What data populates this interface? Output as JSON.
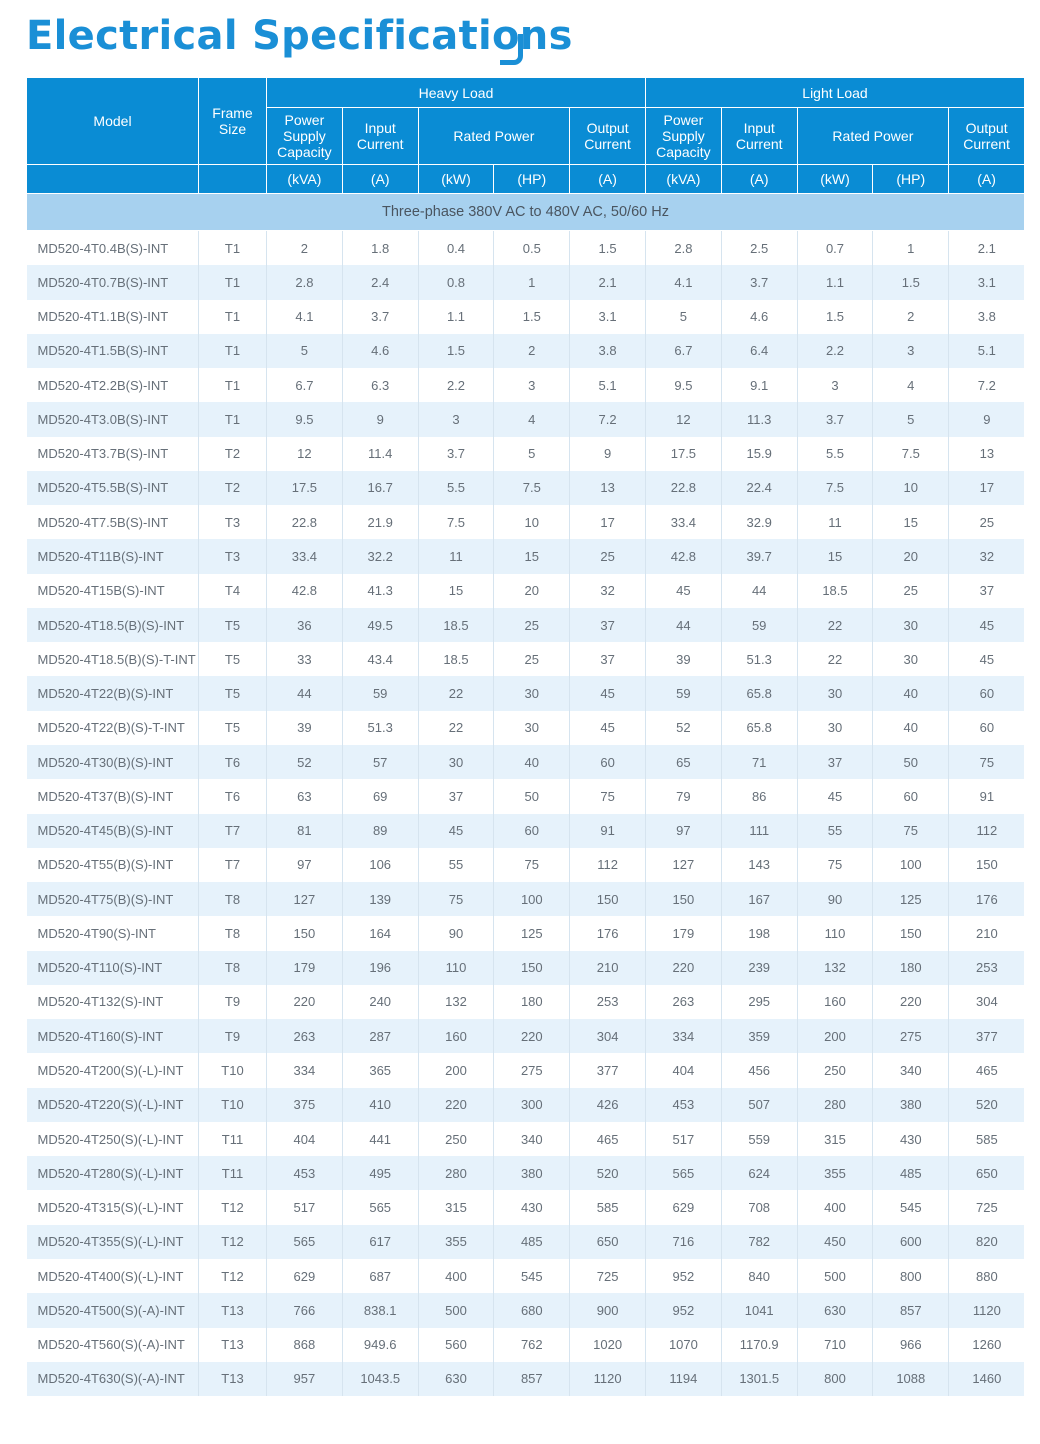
{
  "title": "Electrical Specifications",
  "headers": {
    "model": "Model",
    "frame_size": "Frame Size",
    "heavy_load": "Heavy Load",
    "light_load": "Light Load",
    "power_supply_capacity": "Power Supply Capacity",
    "input_current": "Input Current",
    "rated_power": "Rated Power",
    "output_current": "Output Current",
    "units": [
      "(kVA)",
      "(A)",
      "(kW)",
      "(HP)",
      "(A)",
      "(kVA)",
      "(A)",
      "(kW)",
      "(HP)",
      "(A)"
    ]
  },
  "section_label": "Three-phase 380V AC to 480V AC, 50/60 Hz",
  "rows": [
    [
      "MD520-4T0.4B(S)-INT",
      "T1",
      "2",
      "1.8",
      "0.4",
      "0.5",
      "1.5",
      "2.8",
      "2.5",
      "0.7",
      "1",
      "2.1"
    ],
    [
      "MD520-4T0.7B(S)-INT",
      "T1",
      "2.8",
      "2.4",
      "0.8",
      "1",
      "2.1",
      "4.1",
      "3.7",
      "1.1",
      "1.5",
      "3.1"
    ],
    [
      "MD520-4T1.1B(S)-INT",
      "T1",
      "4.1",
      "3.7",
      "1.1",
      "1.5",
      "3.1",
      "5",
      "4.6",
      "1.5",
      "2",
      "3.8"
    ],
    [
      "MD520-4T1.5B(S)-INT",
      "T1",
      "5",
      "4.6",
      "1.5",
      "2",
      "3.8",
      "6.7",
      "6.4",
      "2.2",
      "3",
      "5.1"
    ],
    [
      "MD520-4T2.2B(S)-INT",
      "T1",
      "6.7",
      "6.3",
      "2.2",
      "3",
      "5.1",
      "9.5",
      "9.1",
      "3",
      "4",
      "7.2"
    ],
    [
      "MD520-4T3.0B(S)-INT",
      "T1",
      "9.5",
      "9",
      "3",
      "4",
      "7.2",
      "12",
      "11.3",
      "3.7",
      "5",
      "9"
    ],
    [
      "MD520-4T3.7B(S)-INT",
      "T2",
      "12",
      "11.4",
      "3.7",
      "5",
      "9",
      "17.5",
      "15.9",
      "5.5",
      "7.5",
      "13"
    ],
    [
      "MD520-4T5.5B(S)-INT",
      "T2",
      "17.5",
      "16.7",
      "5.5",
      "7.5",
      "13",
      "22.8",
      "22.4",
      "7.5",
      "10",
      "17"
    ],
    [
      "MD520-4T7.5B(S)-INT",
      "T3",
      "22.8",
      "21.9",
      "7.5",
      "10",
      "17",
      "33.4",
      "32.9",
      "11",
      "15",
      "25"
    ],
    [
      "MD520-4T11B(S)-INT",
      "T3",
      "33.4",
      "32.2",
      "11",
      "15",
      "25",
      "42.8",
      "39.7",
      "15",
      "20",
      "32"
    ],
    [
      "MD520-4T15B(S)-INT",
      "T4",
      "42.8",
      "41.3",
      "15",
      "20",
      "32",
      "45",
      "44",
      "18.5",
      "25",
      "37"
    ],
    [
      "MD520-4T18.5(B)(S)-INT",
      "T5",
      "36",
      "49.5",
      "18.5",
      "25",
      "37",
      "44",
      "59",
      "22",
      "30",
      "45"
    ],
    [
      "MD520-4T18.5(B)(S)-T-INT",
      "T5",
      "33",
      "43.4",
      "18.5",
      "25",
      "37",
      "39",
      "51.3",
      "22",
      "30",
      "45"
    ],
    [
      "MD520-4T22(B)(S)-INT",
      "T5",
      "44",
      "59",
      "22",
      "30",
      "45",
      "59",
      "65.8",
      "30",
      "40",
      "60"
    ],
    [
      "MD520-4T22(B)(S)-T-INT",
      "T5",
      "39",
      "51.3",
      "22",
      "30",
      "45",
      "52",
      "65.8",
      "30",
      "40",
      "60"
    ],
    [
      "MD520-4T30(B)(S)-INT",
      "T6",
      "52",
      "57",
      "30",
      "40",
      "60",
      "65",
      "71",
      "37",
      "50",
      "75"
    ],
    [
      "MD520-4T37(B)(S)-INT",
      "T6",
      "63",
      "69",
      "37",
      "50",
      "75",
      "79",
      "86",
      "45",
      "60",
      "91"
    ],
    [
      "MD520-4T45(B)(S)-INT",
      "T7",
      "81",
      "89",
      "45",
      "60",
      "91",
      "97",
      "111",
      "55",
      "75",
      "112"
    ],
    [
      "MD520-4T55(B)(S)-INT",
      "T7",
      "97",
      "106",
      "55",
      "75",
      "112",
      "127",
      "143",
      "75",
      "100",
      "150"
    ],
    [
      "MD520-4T75(B)(S)-INT",
      "T8",
      "127",
      "139",
      "75",
      "100",
      "150",
      "150",
      "167",
      "90",
      "125",
      "176"
    ],
    [
      "MD520-4T90(S)-INT",
      "T8",
      "150",
      "164",
      "90",
      "125",
      "176",
      "179",
      "198",
      "110",
      "150",
      "210"
    ],
    [
      "MD520-4T110(S)-INT",
      "T8",
      "179",
      "196",
      "110",
      "150",
      "210",
      "220",
      "239",
      "132",
      "180",
      "253"
    ],
    [
      "MD520-4T132(S)-INT",
      "T9",
      "220",
      "240",
      "132",
      "180",
      "253",
      "263",
      "295",
      "160",
      "220",
      "304"
    ],
    [
      "MD520-4T160(S)-INT",
      "T9",
      "263",
      "287",
      "160",
      "220",
      "304",
      "334",
      "359",
      "200",
      "275",
      "377"
    ],
    [
      "MD520-4T200(S)(-L)-INT",
      "T10",
      "334",
      "365",
      "200",
      "275",
      "377",
      "404",
      "456",
      "250",
      "340",
      "465"
    ],
    [
      "MD520-4T220(S)(-L)-INT",
      "T10",
      "375",
      "410",
      "220",
      "300",
      "426",
      "453",
      "507",
      "280",
      "380",
      "520"
    ],
    [
      "MD520-4T250(S)(-L)-INT",
      "T11",
      "404",
      "441",
      "250",
      "340",
      "465",
      "517",
      "559",
      "315",
      "430",
      "585"
    ],
    [
      "MD520-4T280(S)(-L)-INT",
      "T11",
      "453",
      "495",
      "280",
      "380",
      "520",
      "565",
      "624",
      "355",
      "485",
      "650"
    ],
    [
      "MD520-4T315(S)(-L)-INT",
      "T12",
      "517",
      "565",
      "315",
      "430",
      "585",
      "629",
      "708",
      "400",
      "545",
      "725"
    ],
    [
      "MD520-4T355(S)(-L)-INT",
      "T12",
      "565",
      "617",
      "355",
      "485",
      "650",
      "716",
      "782",
      "450",
      "600",
      "820"
    ],
    [
      "MD520-4T400(S)(-L)-INT",
      "T12",
      "629",
      "687",
      "400",
      "545",
      "725",
      "952",
      "840",
      "500",
      "800",
      "880"
    ],
    [
      "MD520-4T500(S)(-A)-INT",
      "T13",
      "766",
      "838.1",
      "500",
      "680",
      "900",
      "952",
      "1041",
      "630",
      "857",
      "1120"
    ],
    [
      "MD520-4T560(S)(-A)-INT",
      "T13",
      "868",
      "949.6",
      "560",
      "762",
      "1020",
      "1070",
      "1170.9",
      "710",
      "966",
      "1260"
    ],
    [
      "MD520-4T630(S)(-A)-INT",
      "T13",
      "957",
      "1043.5",
      "630",
      "857",
      "1120",
      "1194",
      "1301.5",
      "800",
      "1088",
      "1460"
    ]
  ]
}
